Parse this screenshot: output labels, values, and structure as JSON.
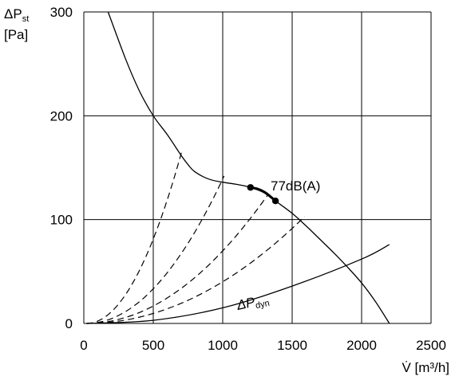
{
  "chart_data": {
    "type": "line",
    "ylabel_main": "ΔP",
    "ylabel_sub": "st",
    "ylabel_unit": "[Pa]",
    "xlabel": "V̇ [m³/h]",
    "xlim": [
      0,
      2500
    ],
    "ylim": [
      0,
      300
    ],
    "xticks": [
      "0",
      "500",
      "1000",
      "1500",
      "2000",
      "2500"
    ],
    "yticks": [
      "0",
      "100",
      "200",
      "300"
    ],
    "grid": true,
    "annotations": {
      "operating_range_label": "77dB(A)",
      "dyn_label_main": "ΔP",
      "dyn_label_sub": "dyn"
    },
    "fan_curve": {
      "x": [
        175,
        300,
        400,
        500,
        600,
        700,
        750,
        800,
        900,
        1000,
        1100,
        1200,
        1300,
        1380,
        1500,
        1600,
        1700,
        1800,
        1900,
        2000,
        2100,
        2200
      ],
      "y": [
        300,
        255,
        224,
        200,
        182,
        162,
        153,
        146,
        139,
        136,
        134,
        131,
        126,
        118,
        106,
        94,
        81,
        68,
        54,
        39,
        21,
        0
      ]
    },
    "operating_range": {
      "x": [
        1200,
        1250,
        1300,
        1340,
        1380
      ],
      "y": [
        131,
        129.5,
        126.5,
        122.5,
        118
      ]
    },
    "operating_points": [
      {
        "x": 1200,
        "y": 131
      },
      {
        "x": 1380,
        "y": 118
      }
    ],
    "system_curves": [
      {
        "end_x": 710,
        "end_y": 168
      },
      {
        "end_x": 1010,
        "end_y": 142
      },
      {
        "end_x": 1320,
        "end_y": 123
      },
      {
        "end_x": 1590,
        "end_y": 103
      }
    ],
    "system_curve_origin_x": 20,
    "dynamic_pressure": {
      "x": [
        20,
        500,
        1000,
        1500,
        2000,
        2200
      ],
      "y": [
        0,
        3,
        15,
        36,
        62,
        76
      ]
    }
  }
}
